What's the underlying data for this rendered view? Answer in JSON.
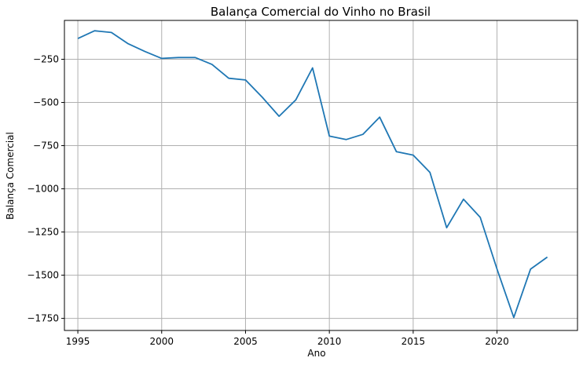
{
  "chart_data": {
    "type": "line",
    "title": "Balança Comercial do Vinho no Brasil",
    "xlabel": "Ano",
    "ylabel": "Balança Comercial",
    "xlim": [
      1994.2,
      2024.8
    ],
    "ylim": [
      -1820,
      -25
    ],
    "x_ticks": [
      1995,
      2000,
      2005,
      2010,
      2015,
      2020
    ],
    "y_ticks": [
      -1750,
      -1500,
      -1250,
      -1000,
      -750,
      -500,
      -250
    ],
    "grid": true,
    "line_color": "#1f77b4",
    "series": [
      {
        "x": [
          1995,
          1996,
          1997,
          1998,
          1999,
          2000,
          2001,
          2002,
          2003,
          2004,
          2005,
          2006,
          2007,
          2008,
          2009,
          2010,
          2011,
          2012,
          2013,
          2014,
          2015,
          2016,
          2017,
          2018,
          2019,
          2020,
          2021,
          2022,
          2023
        ],
        "values": [
          -130,
          -85,
          -95,
          -160,
          -205,
          -245,
          -240,
          -240,
          -280,
          -360,
          -370,
          -470,
          -580,
          -485,
          -300,
          -695,
          -715,
          -685,
          -585,
          -785,
          -805,
          -905,
          -1225,
          -1060,
          -1165,
          -1465,
          -1745,
          -1465,
          -1395
        ]
      }
    ]
  }
}
